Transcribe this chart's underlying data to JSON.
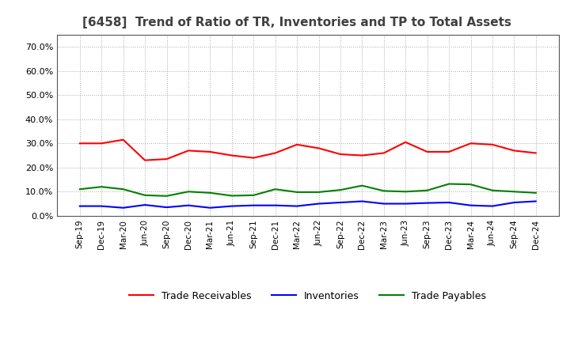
{
  "title": "[6458]  Trend of Ratio of TR, Inventories and TP to Total Assets",
  "x_labels": [
    "Sep-19",
    "Dec-19",
    "Mar-20",
    "Jun-20",
    "Sep-20",
    "Dec-20",
    "Mar-21",
    "Jun-21",
    "Sep-21",
    "Dec-21",
    "Mar-22",
    "Jun-22",
    "Sep-22",
    "Dec-22",
    "Mar-23",
    "Jun-23",
    "Sep-23",
    "Dec-23",
    "Mar-24",
    "Jun-24",
    "Sep-24",
    "Dec-24"
  ],
  "trade_receivables": [
    0.3,
    0.3,
    0.315,
    0.23,
    0.235,
    0.27,
    0.265,
    0.25,
    0.24,
    0.26,
    0.295,
    0.28,
    0.255,
    0.25,
    0.26,
    0.305,
    0.265,
    0.265,
    0.3,
    0.295,
    0.27,
    0.26
  ],
  "inventories": [
    0.04,
    0.04,
    0.033,
    0.045,
    0.035,
    0.043,
    0.033,
    0.04,
    0.043,
    0.043,
    0.04,
    0.05,
    0.055,
    0.06,
    0.05,
    0.05,
    0.053,
    0.055,
    0.043,
    0.04,
    0.055,
    0.06
  ],
  "trade_payables": [
    0.11,
    0.12,
    0.11,
    0.085,
    0.082,
    0.1,
    0.095,
    0.083,
    0.085,
    0.11,
    0.098,
    0.098,
    0.107,
    0.125,
    0.103,
    0.1,
    0.105,
    0.132,
    0.13,
    0.105,
    0.1,
    0.095
  ],
  "tr_color": "#FF0000",
  "inv_color": "#0000FF",
  "tp_color": "#008000",
  "ylim": [
    0.0,
    0.75
  ],
  "yticks": [
    0.0,
    0.1,
    0.2,
    0.3,
    0.4,
    0.5,
    0.6,
    0.7
  ],
  "background_color": "#FFFFFF",
  "grid_color": "#AAAAAA",
  "title_color": "#404040",
  "legend_labels": [
    "Trade Receivables",
    "Inventories",
    "Trade Payables"
  ]
}
